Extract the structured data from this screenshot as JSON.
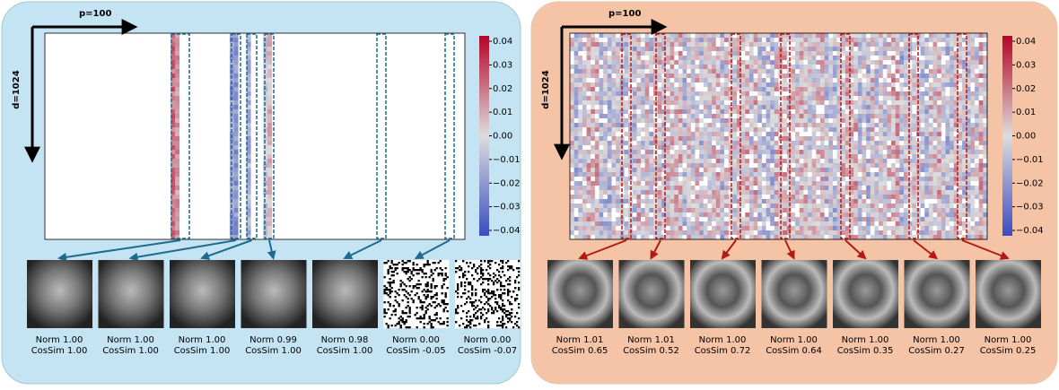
{
  "panels": [
    {
      "x_label": "p=100",
      "y_label": "d=1024",
      "colorbar_ticks": [
        "0.04",
        "0.03",
        "0.02",
        "0.01",
        "0.00",
        "−0.01",
        "−0.02",
        "−0.03",
        "−0.04"
      ],
      "images": [
        {
          "norm": "Norm 1.00",
          "cossim": "CosSim 1.00"
        },
        {
          "norm": "Norm 1.00",
          "cossim": "CosSim 1.00"
        },
        {
          "norm": "Norm 1.00",
          "cossim": "CosSim 1.00"
        },
        {
          "norm": "Norm 0.99",
          "cossim": "CosSim 1.00"
        },
        {
          "norm": "Norm 0.98",
          "cossim": "CosSim 1.00"
        },
        {
          "norm": "Norm 0.00",
          "cossim": "CosSim -0.05"
        },
        {
          "norm": "Norm 0.00",
          "cossim": "CosSim -0.07"
        }
      ]
    },
    {
      "x_label": "p=100",
      "y_label": "d=1024",
      "colorbar_ticks": [
        "0.04",
        "0.03",
        "0.02",
        "0.01",
        "0.00",
        "−0.01",
        "−0.02",
        "−0.03",
        "−0.04"
      ],
      "images": [
        {
          "norm": "Norm 1.01",
          "cossim": "CosSim 0.65"
        },
        {
          "norm": "Norm 1.01",
          "cossim": "CosSim 0.52"
        },
        {
          "norm": "Norm 1.00",
          "cossim": "CosSim 0.72"
        },
        {
          "norm": "Norm 1.00",
          "cossim": "CosSim 0.64"
        },
        {
          "norm": "Norm 1.00",
          "cossim": "CosSim 0.35"
        },
        {
          "norm": "Norm 1.00",
          "cossim": "CosSim 0.27"
        },
        {
          "norm": "Norm 1.00",
          "cossim": "CosSim 0.25"
        }
      ]
    }
  ]
}
